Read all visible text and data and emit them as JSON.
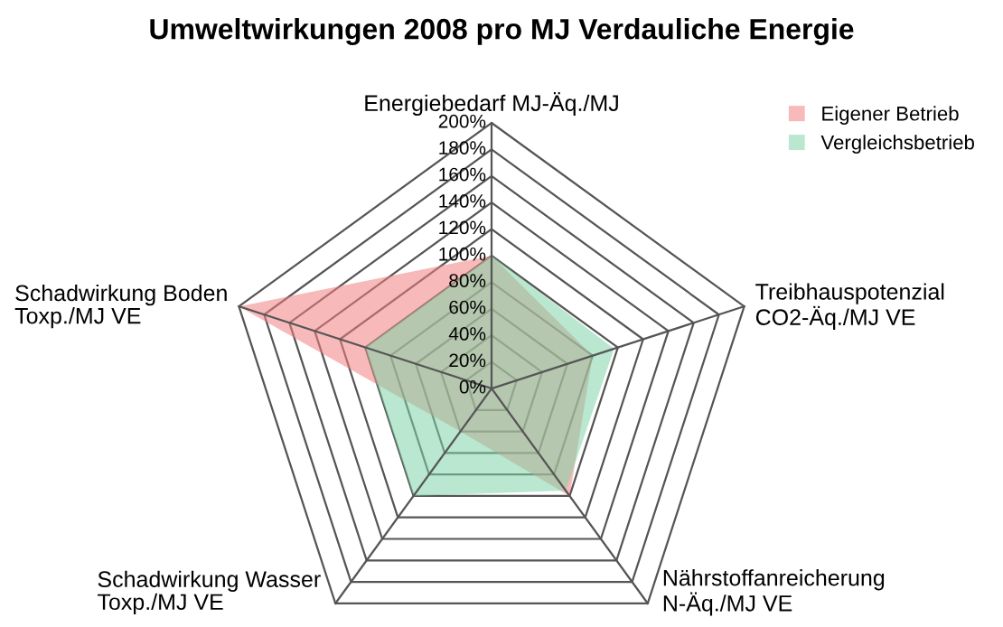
{
  "chart_data": {
    "type": "radar",
    "title": "Umweltwirkungen 2008 pro MJ Verdauliche Energie",
    "categories": [
      "Energiebedarf MJ-Äq./MJ",
      "Treibhauspotenzial\nCO2-Äq./MJ VE",
      "Nährstoffanreicherung\nN-Äq./MJ VE",
      "Schadwirkung Wasser\nToxp./MJ VE",
      "Schadwirkung Boden\nToxp./MJ VE"
    ],
    "series": [
      {
        "name": "Eigener Betrieb",
        "color": "#f08080",
        "values": [
          100,
          80,
          100,
          40,
          200
        ]
      },
      {
        "name": "Vergleichsbetrieb",
        "color": "#7fd4a8",
        "values": [
          100,
          97,
          95,
          100,
          100
        ]
      }
    ],
    "ylim": [
      0,
      200
    ],
    "yticks": [
      {
        "value": 0,
        "label": "0%"
      },
      {
        "value": 20,
        "label": "20%"
      },
      {
        "value": 40,
        "label": "40%"
      },
      {
        "value": 60,
        "label": "60%"
      },
      {
        "value": 80,
        "label": "80%"
      },
      {
        "value": 100,
        "label": "100%"
      },
      {
        "value": 120,
        "label": "120%"
      },
      {
        "value": 140,
        "label": "140%"
      },
      {
        "value": 160,
        "label": "160%"
      },
      {
        "value": 180,
        "label": "180%"
      },
      {
        "value": 200,
        "label": "200%"
      }
    ],
    "grid": true,
    "legend": "top right"
  }
}
